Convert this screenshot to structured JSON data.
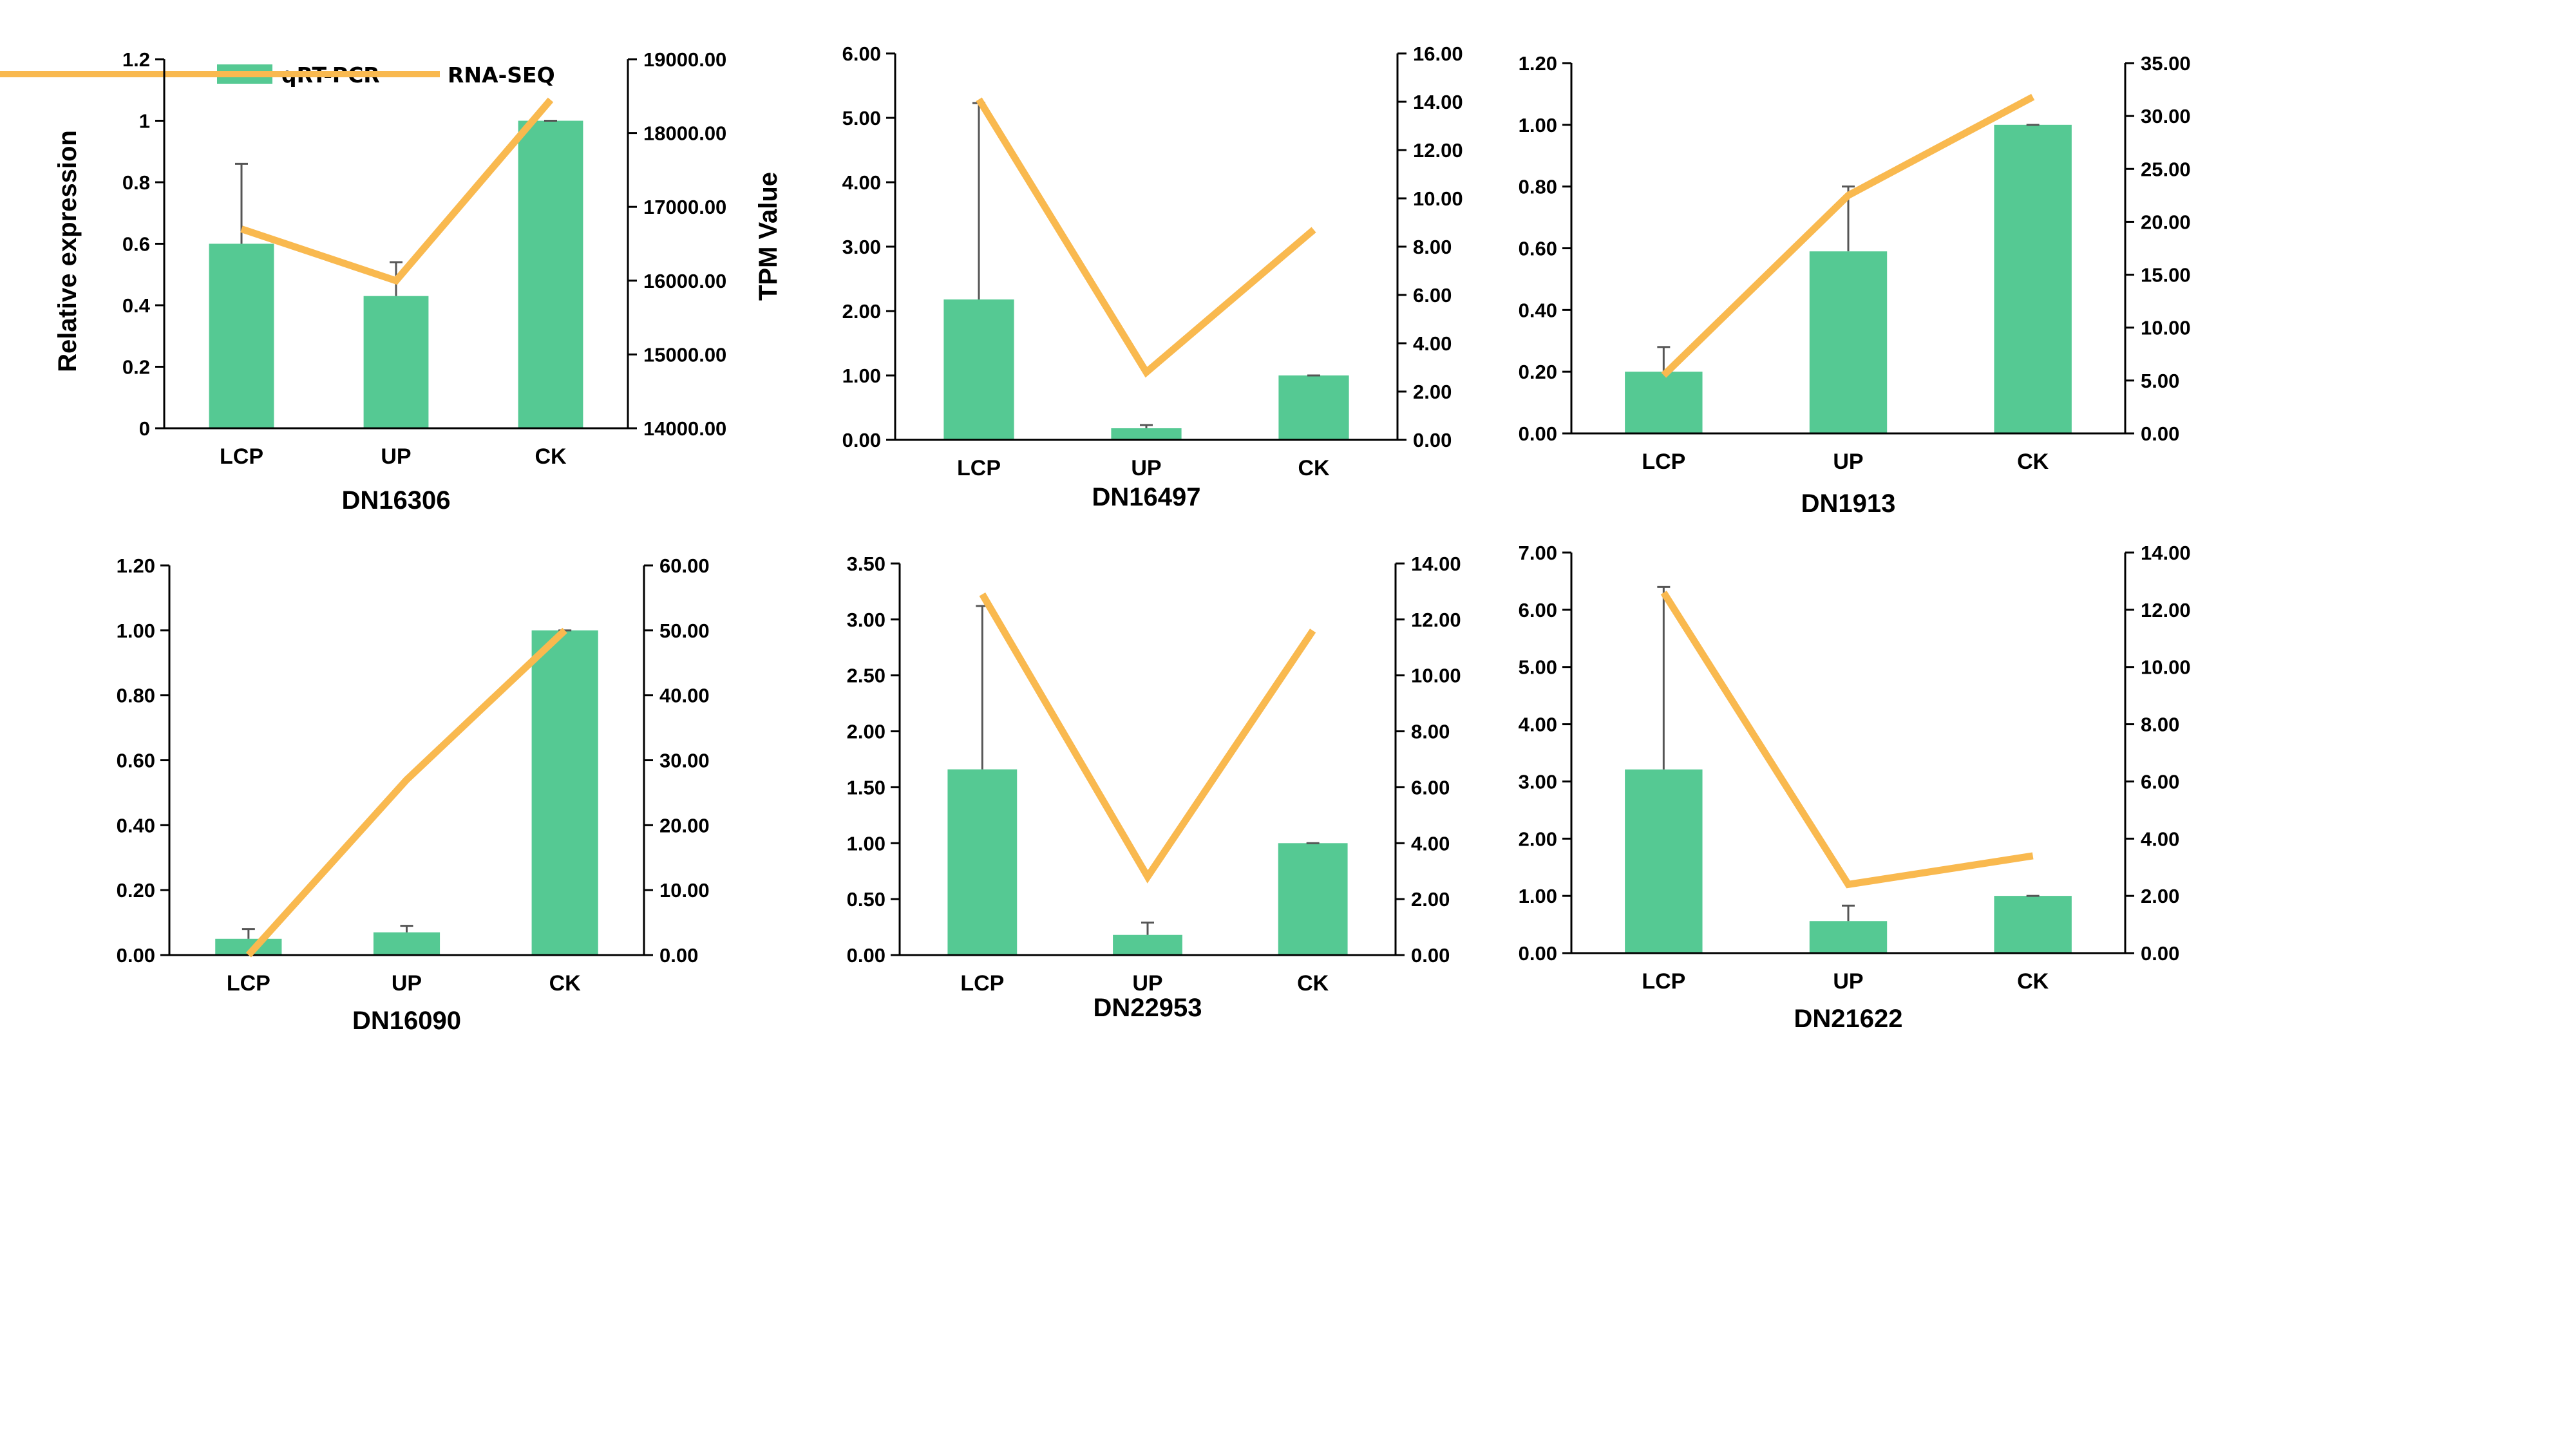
{
  "colors": {
    "bar": "#55C993",
    "line": "#F9B94F",
    "axis": "#000000",
    "error": "#555555"
  },
  "legend": {
    "bar_label": "qRT-PCR",
    "line_label": "RNA-SEQ"
  },
  "left_axis_label": "Relative expression",
  "right_axis_label": "TPM Value",
  "chart_data": [
    {
      "type": "bar",
      "title": "DN16306",
      "categories": [
        "LCP",
        "UP",
        "CK"
      ],
      "series": [
        {
          "name": "qRT-PCR",
          "axis": "left",
          "values": [
            0.6,
            0.43,
            1.0
          ],
          "errors": [
            0.26,
            0.11,
            0.0
          ]
        },
        {
          "name": "RNA-SEQ",
          "axis": "right",
          "type": "line",
          "values": [
            16700,
            16000,
            18450
          ]
        }
      ],
      "ylim": [
        0,
        1.2
      ],
      "yticks": [
        "0",
        "0.2",
        "0.4",
        "0.6",
        "0.8",
        "1",
        "1.2"
      ],
      "y2lim": [
        14000,
        19000
      ],
      "y2ticks": [
        "14000.00",
        "15000.00",
        "16000.00",
        "17000.00",
        "18000.00",
        "19000.00"
      ]
    },
    {
      "type": "bar",
      "title": "DN16497",
      "categories": [
        "LCP",
        "UP",
        "CK"
      ],
      "series": [
        {
          "name": "qRT-PCR",
          "axis": "left",
          "values": [
            2.18,
            0.18,
            1.0
          ],
          "errors": [
            3.05,
            0.05,
            0.0
          ]
        },
        {
          "name": "RNA-SEQ",
          "axis": "right",
          "type": "line",
          "values": [
            14.1,
            2.8,
            8.7
          ]
        }
      ],
      "ylim": [
        0,
        6
      ],
      "yticks": [
        "0.00",
        "1.00",
        "2.00",
        "3.00",
        "4.00",
        "5.00",
        "6.00"
      ],
      "y2lim": [
        0,
        16
      ],
      "y2ticks": [
        "0.00",
        "2.00",
        "4.00",
        "6.00",
        "8.00",
        "10.00",
        "12.00",
        "14.00",
        "16.00"
      ]
    },
    {
      "type": "bar",
      "title": "DN1913",
      "categories": [
        "LCP",
        "UP",
        "CK"
      ],
      "series": [
        {
          "name": "qRT-PCR",
          "axis": "left",
          "values": [
            0.2,
            0.59,
            1.0
          ],
          "errors": [
            0.08,
            0.21,
            0.0
          ]
        },
        {
          "name": "RNA-SEQ",
          "axis": "right",
          "type": "line",
          "values": [
            5.5,
            22.5,
            31.8
          ]
        }
      ],
      "ylim": [
        0,
        1.2
      ],
      "yticks": [
        "0.00",
        "0.20",
        "0.40",
        "0.60",
        "0.80",
        "1.00",
        "1.20"
      ],
      "y2lim": [
        0,
        35
      ],
      "y2ticks": [
        "0.00",
        "5.00",
        "10.00",
        "15.00",
        "20.00",
        "25.00",
        "30.00",
        "35.00"
      ]
    },
    {
      "type": "bar",
      "title": "DN16090",
      "categories": [
        "LCP",
        "UP",
        "CK"
      ],
      "series": [
        {
          "name": "qRT-PCR",
          "axis": "left",
          "values": [
            0.05,
            0.07,
            1.0
          ],
          "errors": [
            0.03,
            0.02,
            0.0
          ]
        },
        {
          "name": "RNA-SEQ",
          "axis": "right",
          "type": "line",
          "values": [
            0.0,
            27.0,
            50.0
          ]
        }
      ],
      "ylim": [
        0,
        1.2
      ],
      "yticks": [
        "0.00",
        "0.20",
        "0.40",
        "0.60",
        "0.80",
        "1.00",
        "1.20"
      ],
      "y2lim": [
        0,
        60
      ],
      "y2ticks": [
        "0.00",
        "10.00",
        "20.00",
        "30.00",
        "40.00",
        "50.00",
        "60.00"
      ]
    },
    {
      "type": "bar",
      "title": "DN22953",
      "categories": [
        "LCP",
        "UP",
        "CK"
      ],
      "series": [
        {
          "name": "qRT-PCR",
          "axis": "left",
          "values": [
            1.66,
            0.18,
            1.0
          ],
          "errors": [
            1.46,
            0.11,
            0.0
          ]
        },
        {
          "name": "RNA-SEQ",
          "axis": "right",
          "type": "line",
          "values": [
            12.9,
            2.8,
            11.6
          ]
        }
      ],
      "ylim": [
        0,
        3.5
      ],
      "yticks": [
        "0.00",
        "0.50",
        "1.00",
        "1.50",
        "2.00",
        "2.50",
        "3.00",
        "3.50"
      ],
      "y2lim": [
        0,
        14
      ],
      "y2ticks": [
        "0.00",
        "2.00",
        "4.00",
        "6.00",
        "8.00",
        "10.00",
        "12.00",
        "14.00"
      ]
    },
    {
      "type": "bar",
      "title": "DN21622",
      "categories": [
        "LCP",
        "UP",
        "CK"
      ],
      "series": [
        {
          "name": "qRT-PCR",
          "axis": "left",
          "values": [
            3.21,
            0.56,
            1.0
          ],
          "errors": [
            3.19,
            0.27,
            0.0
          ]
        },
        {
          "name": "RNA-SEQ",
          "axis": "right",
          "type": "line",
          "values": [
            12.6,
            2.4,
            3.4
          ]
        }
      ],
      "ylim": [
        0,
        7
      ],
      "yticks": [
        "0.00",
        "1.00",
        "2.00",
        "3.00",
        "4.00",
        "5.00",
        "6.00",
        "7.00"
      ],
      "y2lim": [
        0,
        14
      ],
      "y2ticks": [
        "0.00",
        "2.00",
        "4.00",
        "6.00",
        "8.00",
        "10.00",
        "12.00",
        "14.00"
      ]
    }
  ]
}
